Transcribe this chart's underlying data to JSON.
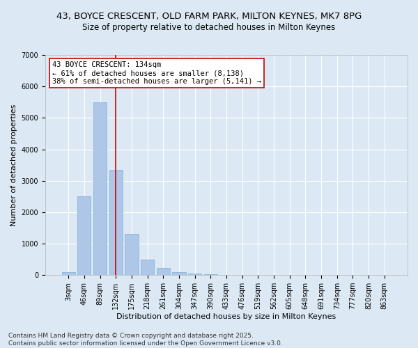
{
  "title_line1": "43, BOYCE CRESCENT, OLD FARM PARK, MILTON KEYNES, MK7 8PG",
  "title_line2": "Size of property relative to detached houses in Milton Keynes",
  "xlabel": "Distribution of detached houses by size in Milton Keynes",
  "ylabel": "Number of detached properties",
  "categories": [
    "3sqm",
    "46sqm",
    "89sqm",
    "132sqm",
    "175sqm",
    "218sqm",
    "261sqm",
    "304sqm",
    "347sqm",
    "390sqm",
    "433sqm",
    "476sqm",
    "519sqm",
    "562sqm",
    "605sqm",
    "648sqm",
    "691sqm",
    "734sqm",
    "777sqm",
    "820sqm",
    "863sqm"
  ],
  "values": [
    100,
    2500,
    5500,
    3350,
    1300,
    490,
    220,
    100,
    55,
    30,
    0,
    0,
    0,
    0,
    0,
    0,
    0,
    0,
    0,
    0,
    0
  ],
  "bar_color": "#aec6e8",
  "bar_edge_color": "#7bafd4",
  "vline_x": 3.0,
  "vline_color": "#cc0000",
  "annotation_text": "43 BOYCE CRESCENT: 134sqm\n← 61% of detached houses are smaller (8,138)\n38% of semi-detached houses are larger (5,141) →",
  "annotation_box_color": "#ffffff",
  "annotation_box_edge_color": "#cc0000",
  "ylim": [
    0,
    7000
  ],
  "yticks": [
    0,
    1000,
    2000,
    3000,
    4000,
    5000,
    6000,
    7000
  ],
  "background_color": "#dce9f5",
  "grid_color": "#ffffff",
  "footer_line1": "Contains HM Land Registry data © Crown copyright and database right 2025.",
  "footer_line2": "Contains public sector information licensed under the Open Government Licence v3.0.",
  "title_fontsize": 9.5,
  "subtitle_fontsize": 8.5,
  "axis_label_fontsize": 8,
  "tick_fontsize": 7,
  "annotation_fontsize": 7.5,
  "footer_fontsize": 6.5
}
